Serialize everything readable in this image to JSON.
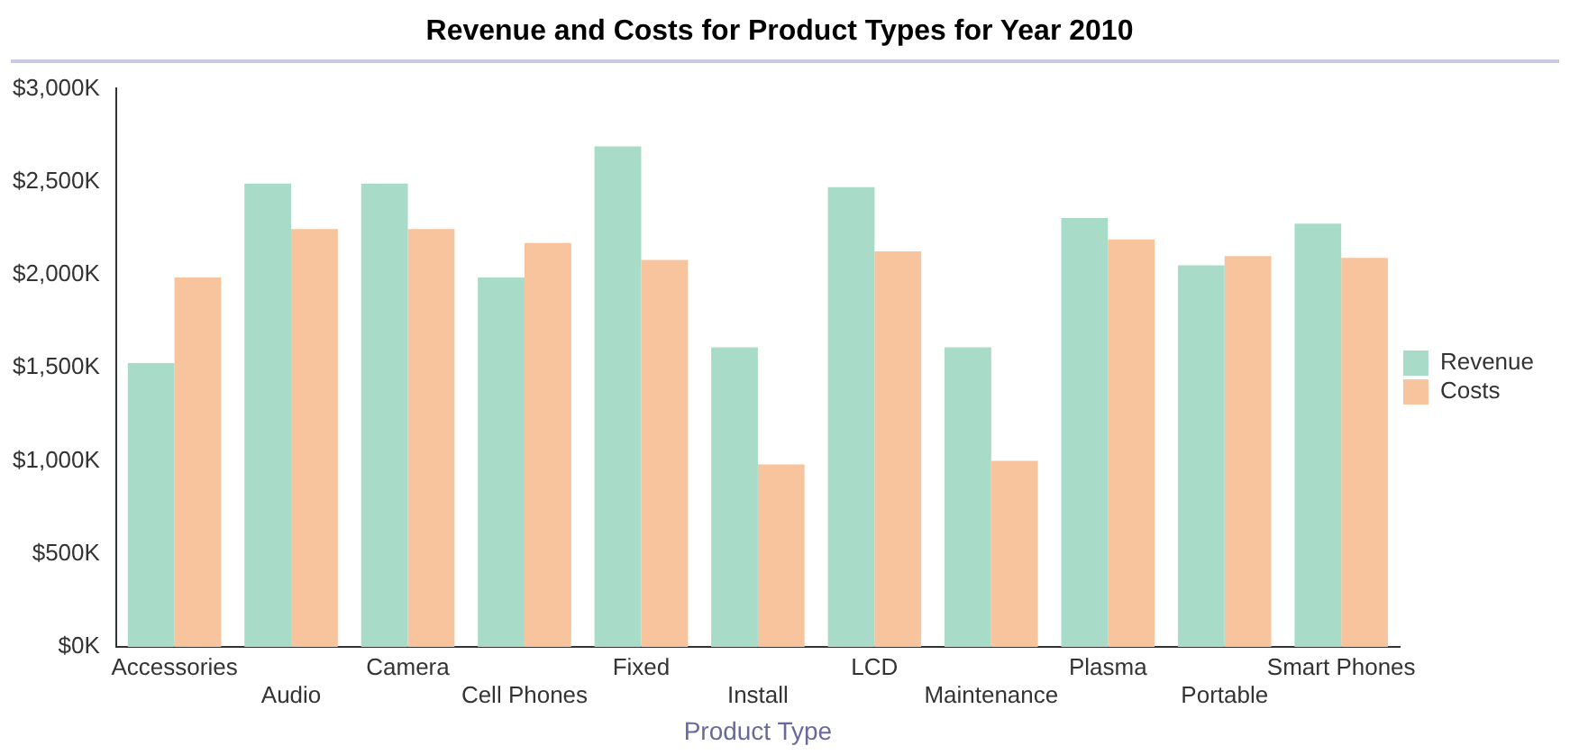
{
  "chart_data": {
    "type": "bar",
    "title": "Revenue and Costs for Product Types for Year 2010",
    "xlabel": "Product Type",
    "categories": [
      "Accessories",
      "Audio",
      "Camera",
      "Cell Phones",
      "Fixed",
      "Install",
      "LCD",
      "Maintenance",
      "Plasma",
      "Portable",
      "Smart Phones"
    ],
    "series": [
      {
        "name": "Revenue",
        "color": "#a8dbc8",
        "values": [
          1525,
          2490,
          2490,
          1985,
          2690,
          1610,
          2470,
          1610,
          2305,
          2050,
          2275
        ]
      },
      {
        "name": "Costs",
        "color": "#f8c49e",
        "values": [
          1985,
          2245,
          2245,
          2170,
          2080,
          980,
          2125,
          1000,
          2190,
          2100,
          2090
        ]
      }
    ],
    "ylim": [
      0,
      3000
    ],
    "yticks": [
      {
        "value": 0,
        "label": "$0K"
      },
      {
        "value": 500,
        "label": "$500K"
      },
      {
        "value": 1000,
        "label": "$1,000K"
      },
      {
        "value": 1500,
        "label": "$1,500K"
      },
      {
        "value": 2000,
        "label": "$2,000K"
      },
      {
        "value": 2500,
        "label": "$2,500K"
      },
      {
        "value": 3000,
        "label": "$3,000K"
      }
    ],
    "grid": false,
    "legend": "right"
  }
}
